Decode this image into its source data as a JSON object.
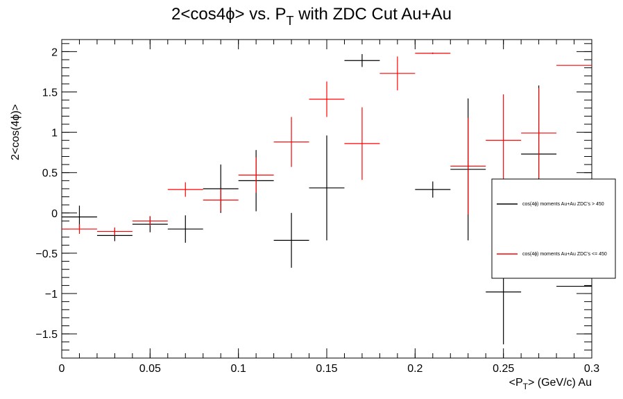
{
  "chart_data": {
    "type": "scatter",
    "title": "2<cos4ϕ> vs. P",
    "title_subscript": "T",
    "title_suffix": " with ZDC Cut Au+Au",
    "xlabel_prefix": "<P",
    "xlabel_subscript": "T",
    "xlabel_suffix": "> (GeV/c) Au",
    "ylabel": "2<cos(4ϕ)>",
    "xlim": [
      0,
      0.3
    ],
    "ylim": [
      -1.8,
      2.15
    ],
    "x_ticks": [
      0,
      0.05,
      0.1,
      0.15,
      0.2,
      0.25,
      0.3
    ],
    "x_tick_labels": [
      "0",
      "0.05",
      "0.1",
      "0.15",
      "0.2",
      "0.25",
      "0.3"
    ],
    "y_ticks": [
      -1.5,
      -1,
      -0.5,
      0,
      0.5,
      1,
      1.5,
      2
    ],
    "y_tick_labels": [
      "−1.5",
      "−1",
      "−0.5",
      "0",
      "0.5",
      "1",
      "1.5",
      "2"
    ],
    "grid": false,
    "legend_position": "right",
    "series": [
      {
        "name": "cos(4ϕ) moments  Au+Au ZDC's > 450",
        "color": "#000000",
        "points": [
          {
            "x": 0.01,
            "xerr": 0.01,
            "y": -0.05,
            "yerr": 0.14
          },
          {
            "x": 0.03,
            "xerr": 0.01,
            "y": -0.28,
            "yerr": 0.07
          },
          {
            "x": 0.05,
            "xerr": 0.01,
            "y": -0.14,
            "yerr": 0.1
          },
          {
            "x": 0.07,
            "xerr": 0.01,
            "y": -0.2,
            "yerr": 0.17
          },
          {
            "x": 0.09,
            "xerr": 0.01,
            "y": 0.3,
            "yerr": 0.3
          },
          {
            "x": 0.11,
            "xerr": 0.01,
            "y": 0.4,
            "yerr": 0.38
          },
          {
            "x": 0.13,
            "xerr": 0.01,
            "y": -0.34,
            "yerr": 0.34
          },
          {
            "x": 0.15,
            "xerr": 0.01,
            "y": 0.31,
            "yerr": 0.65
          },
          {
            "x": 0.17,
            "xerr": 0.01,
            "y": 1.89,
            "yerr": 0.08
          },
          {
            "x": 0.21,
            "xerr": 0.01,
            "y": 0.29,
            "yerr": 0.1
          },
          {
            "x": 0.23,
            "xerr": 0.01,
            "y": 0.54,
            "yerr": 0.88
          },
          {
            "x": 0.25,
            "xerr": 0.01,
            "y": -0.98,
            "yerr": 0.65
          },
          {
            "x": 0.27,
            "xerr": 0.01,
            "y": 0.73,
            "yerr": 0.85
          },
          {
            "x": 0.29,
            "xerr": 0.01,
            "y": -0.91,
            "yerr": 0.0
          }
        ]
      },
      {
        "name": "cos(4ϕ) moments  Au+Au ZDC's <= 450",
        "color": "#ff0000",
        "points": [
          {
            "x": 0.01,
            "xerr": 0.01,
            "y": -0.2,
            "yerr": 0.06
          },
          {
            "x": 0.03,
            "xerr": 0.01,
            "y": -0.23,
            "yerr": 0.05
          },
          {
            "x": 0.05,
            "xerr": 0.01,
            "y": -0.1,
            "yerr": 0.06
          },
          {
            "x": 0.07,
            "xerr": 0.01,
            "y": 0.29,
            "yerr": 0.09
          },
          {
            "x": 0.09,
            "xerr": 0.01,
            "y": 0.16,
            "yerr": 0.14
          },
          {
            "x": 0.11,
            "xerr": 0.01,
            "y": 0.47,
            "yerr": 0.22
          },
          {
            "x": 0.13,
            "xerr": 0.01,
            "y": 0.88,
            "yerr": 0.31
          },
          {
            "x": 0.15,
            "xerr": 0.01,
            "y": 1.41,
            "yerr": 0.22
          },
          {
            "x": 0.17,
            "xerr": 0.01,
            "y": 0.86,
            "yerr": 0.45
          },
          {
            "x": 0.19,
            "xerr": 0.01,
            "y": 1.73,
            "yerr": 0.21
          },
          {
            "x": 0.21,
            "xerr": 0.01,
            "y": 1.98,
            "yerr": 0.01
          },
          {
            "x": 0.23,
            "xerr": 0.01,
            "y": 0.58,
            "yerr": 0.6
          },
          {
            "x": 0.25,
            "xerr": 0.01,
            "y": 0.9,
            "yerr": 0.57
          },
          {
            "x": 0.27,
            "xerr": 0.01,
            "y": 0.99,
            "yerr": 0.56
          },
          {
            "x": 0.29,
            "xerr": 0.01,
            "y": 1.83,
            "yerr": 0.0
          }
        ]
      }
    ]
  }
}
